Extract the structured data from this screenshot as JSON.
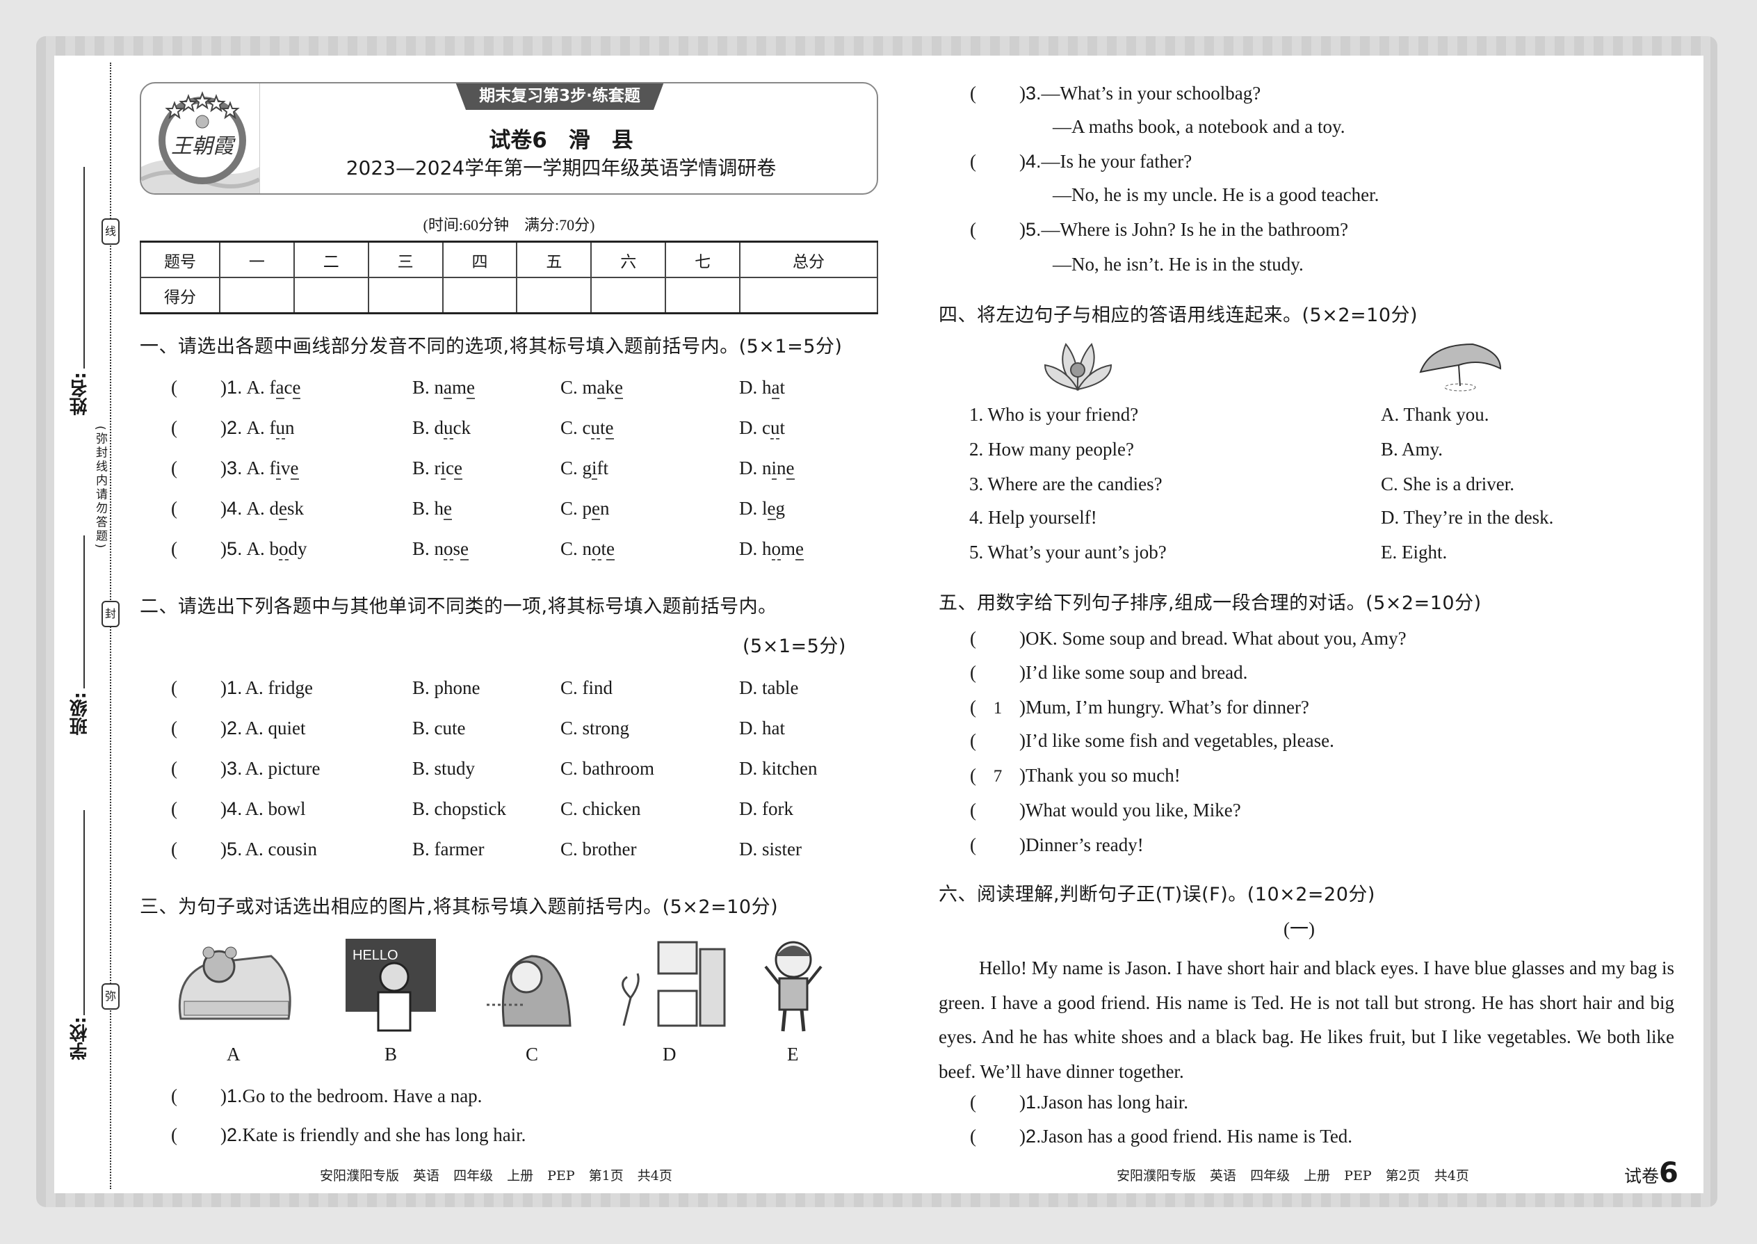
{
  "margin": {
    "name_label": "姓名:",
    "class_label": "班级:",
    "school_label": "学校:",
    "seal_line": "线",
    "seal_seal": "封",
    "seal_mi": "弥",
    "notice": "(弥封线内请勿答题)"
  },
  "header": {
    "logo_text": "王朝霞",
    "badge": "期末复习第3步·练套题",
    "title": "试卷6　滑　县",
    "subtitle": "2023—2024学年第一学期四年级英语学情调研卷",
    "time_info": "(时间:60分钟　满分:70分)"
  },
  "score_table": {
    "row_headers": [
      "题号",
      "得分"
    ],
    "columns": [
      "一",
      "二",
      "三",
      "四",
      "五",
      "六",
      "七",
      "总分"
    ]
  },
  "section1": {
    "heading": "一、请选出各题中画线部分发音不同的选项,将其标号填入题前括号内。(5×1=5分)",
    "questions": [
      {
        "n": "1.",
        "options": [
          {
            "l": "A.",
            "w": "face",
            "u": [
              1,
              3
            ]
          },
          {
            "l": "B.",
            "w": "name",
            "u": [
              1,
              3
            ]
          },
          {
            "l": "C.",
            "w": "make",
            "u": [
              1,
              3
            ]
          },
          {
            "l": "D.",
            "w": "hat",
            "u": [
              1
            ]
          }
        ]
      },
      {
        "n": "2.",
        "options": [
          {
            "l": "A.",
            "w": "fun",
            "u": [
              1
            ]
          },
          {
            "l": "B.",
            "w": "duck",
            "u": [
              1
            ]
          },
          {
            "l": "C.",
            "w": "cute",
            "u": [
              1,
              3
            ]
          },
          {
            "l": "D.",
            "w": "cut",
            "u": [
              1
            ]
          }
        ]
      },
      {
        "n": "3.",
        "options": [
          {
            "l": "A.",
            "w": "five",
            "u": [
              1,
              3
            ]
          },
          {
            "l": "B.",
            "w": "rice",
            "u": [
              1,
              3
            ]
          },
          {
            "l": "C.",
            "w": "gift",
            "u": [
              1
            ]
          },
          {
            "l": "D.",
            "w": "nine",
            "u": [
              1,
              3
            ]
          }
        ]
      },
      {
        "n": "4.",
        "options": [
          {
            "l": "A.",
            "w": "desk",
            "u": [
              1
            ]
          },
          {
            "l": "B.",
            "w": "he",
            "u": [
              1
            ]
          },
          {
            "l": "C.",
            "w": "pen",
            "u": [
              1
            ]
          },
          {
            "l": "D.",
            "w": "leg",
            "u": [
              1
            ]
          }
        ]
      },
      {
        "n": "5.",
        "options": [
          {
            "l": "A.",
            "w": "body",
            "u": [
              1
            ]
          },
          {
            "l": "B.",
            "w": "nose",
            "u": [
              1,
              3
            ]
          },
          {
            "l": "C.",
            "w": "note",
            "u": [
              1,
              3
            ]
          },
          {
            "l": "D.",
            "w": "home",
            "u": [
              1,
              3
            ]
          }
        ]
      }
    ]
  },
  "section2": {
    "heading": "二、请选出下列各题中与其他单词不同类的一项,将其标号填入题前括号内。",
    "score": "(5×1=5分)",
    "questions": [
      {
        "n": "1.",
        "options": [
          "A. fridge",
          "B. phone",
          "C. find",
          "D. table"
        ]
      },
      {
        "n": "2.",
        "options": [
          "A. quiet",
          "B. cute",
          "C. strong",
          "D. hat"
        ]
      },
      {
        "n": "3.",
        "options": [
          "A. picture",
          "B. study",
          "C. bathroom",
          "D. kitchen"
        ]
      },
      {
        "n": "4.",
        "options": [
          "A. bowl",
          "B. chopstick",
          "C. chicken",
          "D. fork"
        ]
      },
      {
        "n": "5.",
        "options": [
          "A. cousin",
          "B. farmer",
          "C. brother",
          "D. sister"
        ]
      }
    ]
  },
  "section3": {
    "heading": "三、为句子或对话选出相应的图片,将其标号填入题前括号内。(5×2=10分)",
    "pictures": [
      {
        "label": "A",
        "icon": "schoolbag-with-teddy"
      },
      {
        "label": "B",
        "icon": "teacher-at-blackboard",
        "board_text": "HELLO"
      },
      {
        "label": "C",
        "icon": "girl-long-hair"
      },
      {
        "label": "D",
        "icon": "bedroom"
      },
      {
        "label": "E",
        "icon": "boy-waving"
      }
    ],
    "questions": [
      {
        "n": "1.",
        "text": "Go to the bedroom. Have a nap."
      },
      {
        "n": "2.",
        "text": "Kate is friendly and she has long hair."
      },
      {
        "n": "3.",
        "text": "—What’s in your schoolbag?",
        "reply": "—A maths book, a notebook and a toy."
      },
      {
        "n": "4.",
        "text": "—Is he your father?",
        "reply": "—No, he is my uncle. He is a good teacher."
      },
      {
        "n": "5.",
        "text": "—Where is John?  Is he in the bathroom?",
        "reply": "—No, he isn’t. He is in the study."
      }
    ]
  },
  "section4": {
    "heading": "四、将左边句子与相应的答语用线连起来。(5×2=10分)",
    "left": [
      "1. Who is your friend?",
      "2. How many people?",
      "3. Where are the candies?",
      "4. Help yourself!",
      "5. What’s your aunt’s job?"
    ],
    "right": [
      "A. Thank you.",
      "B. Amy.",
      "C. She is a driver.",
      "D. They’re in the desk.",
      "E. Eight."
    ]
  },
  "section5": {
    "heading": "五、用数字给下列句子排序,组成一段合理的对话。(5×2=10分)",
    "items": [
      {
        "answer": "",
        "text": "OK. Some soup and bread. What about you, Amy?"
      },
      {
        "answer": "",
        "text": "I’d like some soup and bread."
      },
      {
        "answer": "1",
        "text": "Mum, I’m hungry. What’s for dinner?"
      },
      {
        "answer": "",
        "text": "I’d like some fish and vegetables, please."
      },
      {
        "answer": "7",
        "text": "Thank you so much!"
      },
      {
        "answer": "",
        "text": "What would you like, Mike?"
      },
      {
        "answer": "",
        "text": "Dinner’s ready!"
      }
    ]
  },
  "section6": {
    "heading": "六、阅读理解,判断句子正(T)误(F)。(10×2=20分)",
    "part_label": "(一)",
    "passage": "Hello!  My name is Jason. I have short hair and black eyes. I have blue glasses and my bag is green. I have a good friend. His name is Ted. He is not tall but strong. He has short hair and big eyes. And he has white shoes and a black bag. He likes fruit, but I like vegetables. We both like beef. We’ll have dinner together.",
    "questions": [
      {
        "n": "1.",
        "text": "Jason has long hair."
      },
      {
        "n": "2.",
        "text": "Jason has a good friend. His name is Ted."
      }
    ]
  },
  "footer": {
    "left": "安阳濮阳专版 英语 四年级 上册 PEP 第1页 共4页",
    "right": "安阳濮阳专版 英语 四年级 上册 PEP 第2页 共4页",
    "paper_label": "试卷",
    "paper_number": "6"
  }
}
